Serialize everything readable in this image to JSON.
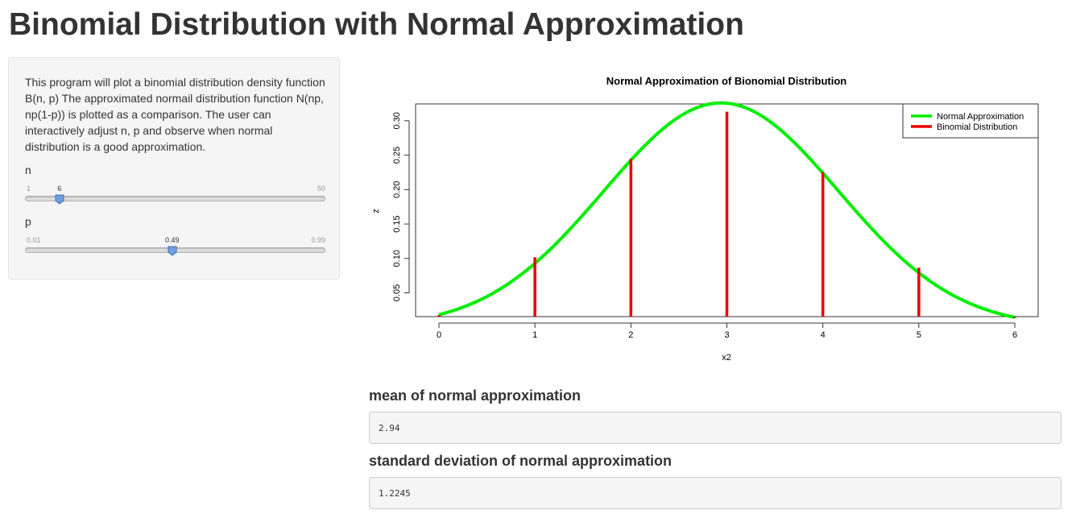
{
  "page": {
    "title": "Binomial Distribution with Normal Approximation"
  },
  "sidebar": {
    "description": "This program will plot a binomial distribution density function B(n, p) The approximated normail distribution function N(np, np(1-p)) is plotted as a comparison. The user can interactively adjust n, p and observe when normal distribution is a good approximation.",
    "sliders": [
      {
        "label": "n",
        "min": "1",
        "max": "50",
        "value": "6",
        "min_num": 1,
        "max_num": 50,
        "value_num": 6
      },
      {
        "label": "p",
        "min": "0.01",
        "max": "0.99",
        "value": "0.49",
        "min_num": 0.01,
        "max_num": 0.99,
        "value_num": 0.49
      }
    ]
  },
  "chart_data": {
    "type": "line",
    "title": "Normal Approximation of Bionomial Distribution",
    "xlabel": "x2",
    "ylabel": "z",
    "xlim": [
      0,
      6
    ],
    "ylim": [
      0.0155,
      0.3244
    ],
    "x_ticks": [
      "0",
      "1",
      "2",
      "3",
      "4",
      "5",
      "6"
    ],
    "y_ticks": [
      "0.05",
      "0.10",
      "0.15",
      "0.20",
      "0.25",
      "0.30"
    ],
    "legend": {
      "position": "top-right",
      "entries": [
        "Normal Approximation",
        "Binomial Distribution"
      ]
    },
    "colors": {
      "normal": "#00ee00",
      "binomial": "#ee0000"
    },
    "normal": {
      "mean": 2.94,
      "sd": 1.2245
    },
    "series": [
      {
        "name": "Binomial Distribution",
        "style": "vertical-lines",
        "x": [
          0,
          1,
          2,
          3,
          4,
          5,
          6
        ],
        "values": [
          0.0177,
          0.1018,
          0.2445,
          0.3131,
          0.2255,
          0.0866,
          0.0139
        ]
      },
      {
        "name": "Normal Approximation",
        "style": "curve",
        "x_range": [
          0,
          6
        ]
      }
    ],
    "grid": false
  },
  "outputs": [
    {
      "label": "mean of normal approximation",
      "value": "2.94"
    },
    {
      "label": "standard deviation of normal approximation",
      "value": "1.2245"
    }
  ]
}
